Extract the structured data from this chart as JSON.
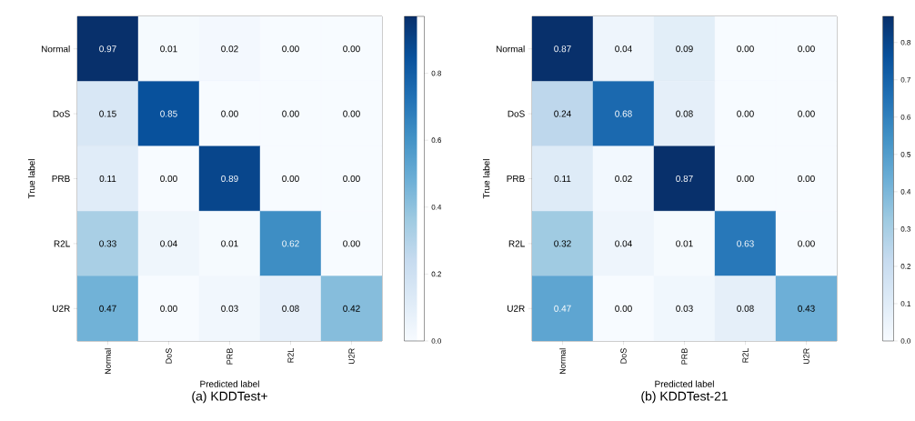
{
  "chart_data": [
    {
      "type": "heatmap",
      "title": "(a) KDDTest+",
      "xlabel": "Predicted label",
      "ylabel": "True label",
      "categories": [
        "Normal",
        "DoS",
        "PRB",
        "R2L",
        "U2R"
      ],
      "y_categories": [
        "Normal",
        "DoS",
        "PRB",
        "R2L",
        "U2R"
      ],
      "cells": [
        [
          0.97,
          0.01,
          0.02,
          0.0,
          0.0
        ],
        [
          0.15,
          0.85,
          0.0,
          0.0,
          0.0
        ],
        [
          0.11,
          0.0,
          0.89,
          0.0,
          0.0
        ],
        [
          0.33,
          0.04,
          0.01,
          0.62,
          0.0
        ],
        [
          0.47,
          0.0,
          0.03,
          0.08,
          0.42
        ]
      ],
      "cell_labels": [
        [
          "0.97",
          "0.01",
          "0.02",
          "0.00",
          "0.00"
        ],
        [
          "0.15",
          "0.85",
          "0.00",
          "0.00",
          "0.00"
        ],
        [
          "0.11",
          "0.00",
          "0.89",
          "0.00",
          "0.00"
        ],
        [
          "0.33",
          "0.04",
          "0.01",
          "0.62",
          "0.00"
        ],
        [
          "0.47",
          "0.00",
          "0.03",
          "0.08",
          "0.42"
        ]
      ],
      "clim": [
        0,
        0.97
      ],
      "cticks": [
        {
          "value": 0,
          "label": "0.0"
        },
        {
          "value": 0.2,
          "label": "0.2"
        },
        {
          "value": 0.4,
          "label": "0.4"
        },
        {
          "value": 0.6,
          "label": "0.6"
        },
        {
          "value": 0.8,
          "label": "0.8"
        }
      ]
    },
    {
      "type": "heatmap",
      "title": "(b) KDDTest-21",
      "xlabel": "Predicted label",
      "ylabel": "True label",
      "categories": [
        "Normal",
        "DoS",
        "PRB",
        "R2L",
        "U2R"
      ],
      "y_categories": [
        "Normal",
        "DoS",
        "PRB",
        "R2L",
        "U2R"
      ],
      "cells": [
        [
          0.87,
          0.04,
          0.09,
          0.0,
          0.0
        ],
        [
          0.24,
          0.68,
          0.08,
          0.0,
          0.0
        ],
        [
          0.11,
          0.02,
          0.87,
          0.0,
          0.0
        ],
        [
          0.32,
          0.04,
          0.01,
          0.63,
          0.0
        ],
        [
          0.47,
          0.0,
          0.03,
          0.08,
          0.43
        ]
      ],
      "cell_labels": [
        [
          "0.87",
          "0.04",
          "0.09",
          "0.00",
          "0.00"
        ],
        [
          "0.24",
          "0.68",
          "0.08",
          "0.00",
          "0.00"
        ],
        [
          "0.11",
          "0.02",
          "0.87",
          "0.00",
          "0.00"
        ],
        [
          "0.32",
          "0.04",
          "0.01",
          "0.63",
          "0.00"
        ],
        [
          "0.47",
          "0.00",
          "0.03",
          "0.08",
          "0.43"
        ]
      ],
      "clim": [
        0,
        0.87
      ],
      "cticks": [
        {
          "value": 0,
          "label": "0.0"
        },
        {
          "value": 0.1,
          "label": "0.1"
        },
        {
          "value": 0.2,
          "label": "0.2"
        },
        {
          "value": 0.3,
          "label": "0.3"
        },
        {
          "value": 0.4,
          "label": "0.4"
        },
        {
          "value": 0.5,
          "label": "0.5"
        },
        {
          "value": 0.6,
          "label": "0.6"
        },
        {
          "value": 0.7,
          "label": "0.7"
        },
        {
          "value": 0.8,
          "label": "0.8"
        }
      ]
    }
  ]
}
